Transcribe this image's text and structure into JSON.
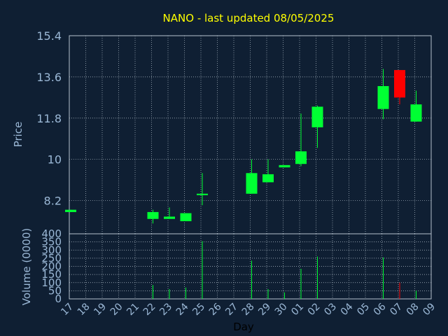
{
  "chart_data": {
    "type": "candlestick",
    "title": "NANO - last updated 08/05/2025",
    "xlabel": "Day",
    "ylabel": "Price",
    "volume_label": "Volume (0000)",
    "grid": true,
    "price_ticks": [
      "15.4",
      "13.6",
      "11.8",
      "10",
      "8.2"
    ],
    "price_range": [
      6.75,
      15.4
    ],
    "volume_ticks": [
      "400",
      "350",
      "300",
      "250",
      "200",
      "150",
      "100",
      "50",
      "0"
    ],
    "volume_range": [
      0,
      400
    ],
    "days": [
      "17",
      "18",
      "19",
      "20",
      "21",
      "22",
      "23",
      "24",
      "25",
      "26",
      "27",
      "28",
      "29",
      "30",
      "01",
      "02",
      "03",
      "04",
      "05",
      "06",
      "07",
      "08",
      "09"
    ],
    "colors": {
      "up": "#00ff33",
      "down": "#ff0000",
      "background": "#0f1f33",
      "text": "#9bb8d6",
      "title": "#ffff00"
    },
    "candles": [
      {
        "day": "17",
        "open": 7.7,
        "high": 7.8,
        "low": 7.7,
        "close": 7.8,
        "volume": 0
      },
      {
        "day": "22",
        "open": 7.4,
        "high": 7.8,
        "low": 7.2,
        "close": 7.7,
        "volume": 85
      },
      {
        "day": "23",
        "open": 7.4,
        "high": 7.9,
        "low": 7.4,
        "close": 7.5,
        "volume": 60
      },
      {
        "day": "24",
        "open": 7.3,
        "high": 7.65,
        "low": 7.3,
        "close": 7.65,
        "volume": 70
      },
      {
        "day": "25",
        "open": 8.45,
        "high": 9.4,
        "low": 8.0,
        "close": 8.5,
        "volume": 355
      },
      {
        "day": "28",
        "open": 8.5,
        "high": 10.0,
        "low": 8.5,
        "close": 9.4,
        "volume": 235
      },
      {
        "day": "29",
        "open": 9.0,
        "high": 10.0,
        "low": 9.0,
        "close": 9.35,
        "volume": 60
      },
      {
        "day": "30",
        "open": 9.65,
        "high": 9.75,
        "low": 9.65,
        "close": 9.75,
        "volume": 40
      },
      {
        "day": "01",
        "open": 9.8,
        "high": 12.0,
        "low": 9.7,
        "close": 10.35,
        "volume": 185
      },
      {
        "day": "02",
        "open": 11.4,
        "high": 12.35,
        "low": 10.5,
        "close": 12.3,
        "volume": 260
      },
      {
        "day": "06",
        "open": 12.2,
        "high": 13.95,
        "low": 11.75,
        "close": 13.2,
        "volume": 255
      },
      {
        "day": "07",
        "open": 13.9,
        "high": 13.9,
        "low": 12.4,
        "close": 12.7,
        "volume": 100
      },
      {
        "day": "08",
        "open": 11.65,
        "high": 13.0,
        "low": 11.65,
        "close": 12.4,
        "volume": 50
      }
    ]
  }
}
